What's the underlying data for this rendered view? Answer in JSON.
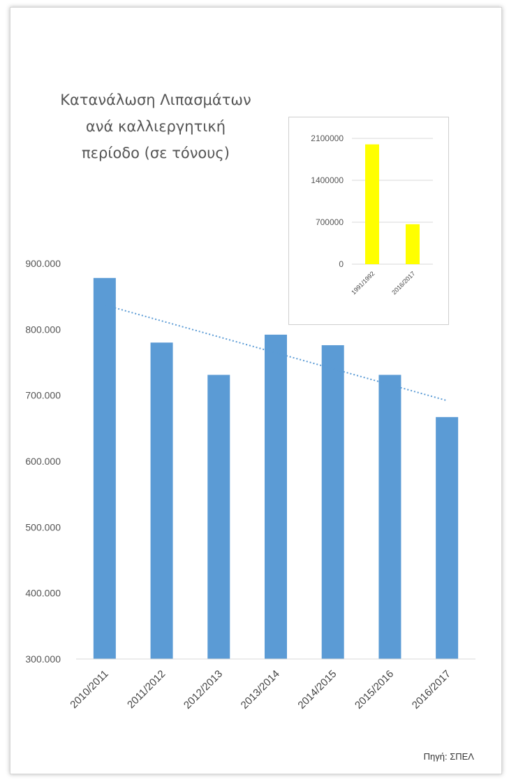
{
  "chart_data": [
    {
      "type": "bar",
      "title_lines": [
        "Κατανάλωση Λιπασμάτων",
        "ανά καλλιεργητική",
        "περίοδο (σε τόνους)"
      ],
      "categories": [
        "2010/2011",
        "2011/2012",
        "2012/2013",
        "2013/2014",
        "2014/2015",
        "2015/2016",
        "2016/2017"
      ],
      "values": [
        878000,
        780000,
        731000,
        792000,
        776000,
        731000,
        667000
      ],
      "ylim": [
        300000,
        900000
      ],
      "yticks": [
        300000,
        400000,
        500000,
        600000,
        700000,
        800000,
        900000
      ],
      "ytick_labels": [
        "300.000",
        "400.000",
        "500.000",
        "600.000",
        "700.000",
        "800.000",
        "900.000"
      ],
      "trendline": {
        "style": "dotted linear",
        "start": 837000,
        "end": 692000
      },
      "colors": {
        "bar": "#5b9bd5",
        "trendline": "#5b9bd5",
        "axis": "#d9d9d9"
      },
      "grid": false
    },
    {
      "type": "bar",
      "categories": [
        "1991/1992",
        "2016/2017"
      ],
      "values": [
        2000000,
        667000
      ],
      "ylim": [
        0,
        2100000
      ],
      "yticks": [
        0,
        700000,
        1400000,
        2100000
      ],
      "ytick_labels": [
        "0",
        "700000",
        "1400000",
        "2100000"
      ],
      "colors": {
        "bar": "#ffff00",
        "grid": "#d9d9d9"
      },
      "grid": true
    }
  ],
  "source": "Πηγή: ΣΠΕΛ"
}
